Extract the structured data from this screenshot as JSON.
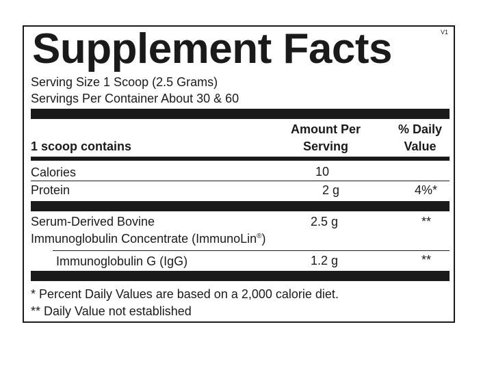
{
  "version": "V1",
  "title": "Supplement Facts",
  "serving_size": "Serving Size 1 Scoop (2.5 Grams)",
  "servings_per_container": "Servings Per Container About 30 & 60",
  "header": {
    "contains": "1 scoop contains",
    "amount_line1": "Amount Per",
    "amount_line2": "Serving",
    "dv_line1": "% Daily",
    "dv_line2": "Value"
  },
  "rows": {
    "calories": {
      "name": "Calories",
      "amount": "10",
      "dv": ""
    },
    "protein": {
      "name": "Protein",
      "amount": "2 g",
      "dv": "4%*"
    },
    "sbi": {
      "name_line1": "Serum-Derived Bovine",
      "name_line2": "Immunoglobulin Concentrate (ImmunoLin",
      "reg": "®",
      "name_line2_end": ")",
      "amount": "2.5 g",
      "dv": "**"
    },
    "igg": {
      "name": "Immunoglobulin G (IgG)",
      "amount": "1.2 g",
      "dv": "**"
    }
  },
  "footnotes": {
    "note1": "* Percent Daily Values are based on a 2,000 calorie diet.",
    "note2": "** Daily Value not established"
  }
}
